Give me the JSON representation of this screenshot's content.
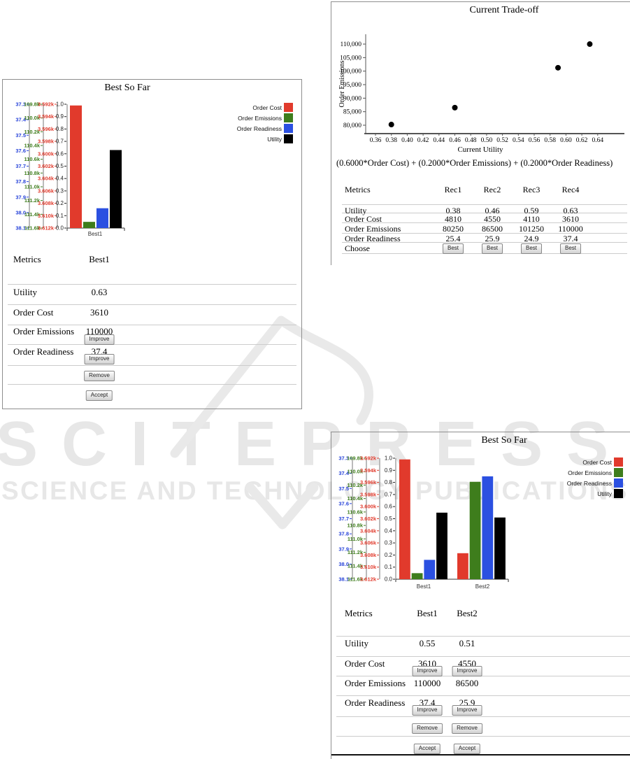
{
  "watermark": {
    "brand": "SCITEPRESS",
    "subtitle": "SCIENCE AND TECHNOLOGY PUBLICATIONS"
  },
  "colors": {
    "order_cost": "#e13a2c",
    "order_emissions": "#3e7d1c",
    "order_readiness": "#2b50e1",
    "utility": "#000000",
    "readiness_axis_label": "#2743d9",
    "emissions_axis_label": "#3e7d1c",
    "cost_axis_label": "#e13a2c",
    "utility_axis_label": "#222222"
  },
  "panels": {
    "best1": {
      "title": "Best So Far",
      "table": {
        "metrics_header": "Metrics",
        "columns": [
          "Best1"
        ],
        "rows": [
          {
            "metric": "Utility",
            "values": [
              "0.63"
            ],
            "improve": false
          },
          {
            "metric": "Order Cost",
            "values": [
              "3610"
            ],
            "improve": false
          },
          {
            "metric": "Order Emissions",
            "values": [
              "110000"
            ],
            "improve": true
          },
          {
            "metric": "Order Readiness",
            "values": [
              "37.4"
            ],
            "improve": true
          }
        ],
        "improve_label": "Improve",
        "remove_label": "Remove",
        "accept_label": "Accept"
      }
    },
    "tradeoff": {
      "title": "Current Trade-off",
      "formula": "(0.6000*Order Cost) + (0.2000*Order Emissions) + (0.2000*Order Readiness)",
      "table": {
        "metrics_header": "Metrics",
        "columns": [
          "Rec1",
          "Rec2",
          "Rec3",
          "Rec4"
        ],
        "rows": [
          {
            "metric": "Utility",
            "values": [
              "0.38",
              "0.46",
              "0.59",
              "0.63"
            ]
          },
          {
            "metric": "Order Cost",
            "values": [
              "4810",
              "4550",
              "4110",
              "3610"
            ]
          },
          {
            "metric": "Order Emissions",
            "values": [
              "80250",
              "86500",
              "101250",
              "110000"
            ]
          },
          {
            "metric": "Order Readiness",
            "values": [
              "25.4",
              "25.9",
              "24.9",
              "37.4"
            ]
          }
        ],
        "choose_label": "Choose",
        "best_label": "Best"
      }
    },
    "best2": {
      "title": "Best So Far",
      "table": {
        "metrics_header": "Metrics",
        "columns": [
          "Best1",
          "Best2"
        ],
        "rows": [
          {
            "metric": "Utility",
            "values": [
              "0.55",
              "0.51"
            ],
            "improve": false
          },
          {
            "metric": "Order Cost",
            "values": [
              "3610",
              "4550"
            ],
            "improve": true
          },
          {
            "metric": "Order Emissions",
            "values": [
              "110000",
              "86500"
            ],
            "improve": false
          },
          {
            "metric": "Order Readiness",
            "values": [
              "37.4",
              "25.9"
            ],
            "improve": true
          }
        ],
        "improve_label": "Improve",
        "remove_label": "Remove",
        "accept_label": "Accept"
      }
    }
  },
  "chart_data": [
    {
      "id": "best1-bars",
      "type": "bar",
      "title": "Best So Far",
      "categories": [
        "Best1"
      ],
      "series": [
        {
          "name": "Order Cost",
          "color": "#e13a2c",
          "values": [
            0.99
          ]
        },
        {
          "name": "Order Emissions",
          "color": "#3e7d1c",
          "values": [
            0.05
          ]
        },
        {
          "name": "Order Readiness",
          "color": "#2b50e1",
          "values": [
            0.16
          ]
        },
        {
          "name": "Utility",
          "color": "#000000",
          "values": [
            0.63
          ]
        }
      ],
      "ylim": [
        0,
        1
      ],
      "legend_position": "right",
      "axes_ticks": {
        "readiness": [
          "37.3",
          "37.4",
          "37.5",
          "37.6",
          "37.7",
          "37.8",
          "37.9",
          "38.0",
          "38.1"
        ],
        "emissions": [
          "109.8k",
          "110.0k",
          "110.2k",
          "110.4k",
          "110.6k",
          "110.8k",
          "111.0k",
          "111.2k",
          "111.4k",
          "111.6k"
        ],
        "cost": [
          "3.592k",
          "3.594k",
          "3.596k",
          "3.598k",
          "3.600k",
          "3.602k",
          "3.604k",
          "3.606k",
          "3.608k",
          "3.610k",
          "3.612k"
        ],
        "utility": [
          "1.0",
          "0.9",
          "0.8",
          "0.7",
          "0.6",
          "0.5",
          "0.4",
          "0.3",
          "0.2",
          "0.1",
          "0.0"
        ]
      }
    },
    {
      "id": "tradeoff-scatter",
      "type": "scatter",
      "title": "Current Trade-off",
      "xlabel": "Current Utility",
      "ylabel": "Order Emissions",
      "x": [
        0.38,
        0.46,
        0.59,
        0.63
      ],
      "y": [
        80250,
        86500,
        101250,
        110000
      ],
      "x_ticks": [
        "0.36",
        "0.38",
        "0.40",
        "0.42",
        "0.44",
        "0.46",
        "0.48",
        "0.50",
        "0.52",
        "0.54",
        "0.56",
        "0.58",
        "0.60",
        "0.62",
        "0.64"
      ],
      "y_ticks": [
        "80,000",
        "85,000",
        "90,000",
        "95,000",
        "100,000",
        "105,000",
        "110,000"
      ],
      "xlim": [
        0.35,
        0.66
      ],
      "ylim": [
        77500,
        113000
      ],
      "grid": false,
      "marker": "circle"
    },
    {
      "id": "best2-bars",
      "type": "bar",
      "title": "Best So Far",
      "categories": [
        "Best1",
        "Best2"
      ],
      "series": [
        {
          "name": "Order Cost",
          "color": "#e13a2c",
          "values": [
            0.99,
            0.215
          ]
        },
        {
          "name": "Order Emissions",
          "color": "#3e7d1c",
          "values": [
            0.05,
            0.805
          ]
        },
        {
          "name": "Order Readiness",
          "color": "#2b50e1",
          "values": [
            0.16,
            0.85
          ]
        },
        {
          "name": "Utility",
          "color": "#000000",
          "values": [
            0.55,
            0.51
          ]
        }
      ],
      "ylim": [
        0,
        1
      ],
      "legend_position": "right",
      "axes_ticks": {
        "readiness": [
          "37.3",
          "37.4",
          "37.5",
          "37.6",
          "37.7",
          "37.8",
          "37.9",
          "38.0",
          "38.1"
        ],
        "emissions": [
          "109.8k",
          "110.0k",
          "110.2k",
          "110.4k",
          "110.6k",
          "110.8k",
          "111.0k",
          "111.2k",
          "111.4k",
          "111.6k"
        ],
        "cost": [
          "3.592k",
          "3.594k",
          "3.596k",
          "3.598k",
          "3.600k",
          "3.602k",
          "3.604k",
          "3.606k",
          "3.608k",
          "3.610k",
          "3.612k"
        ],
        "utility": [
          "1.0",
          "0.9",
          "0.8",
          "0.7",
          "0.6",
          "0.5",
          "0.4",
          "0.3",
          "0.2",
          "0.1",
          "0.0"
        ]
      }
    }
  ]
}
